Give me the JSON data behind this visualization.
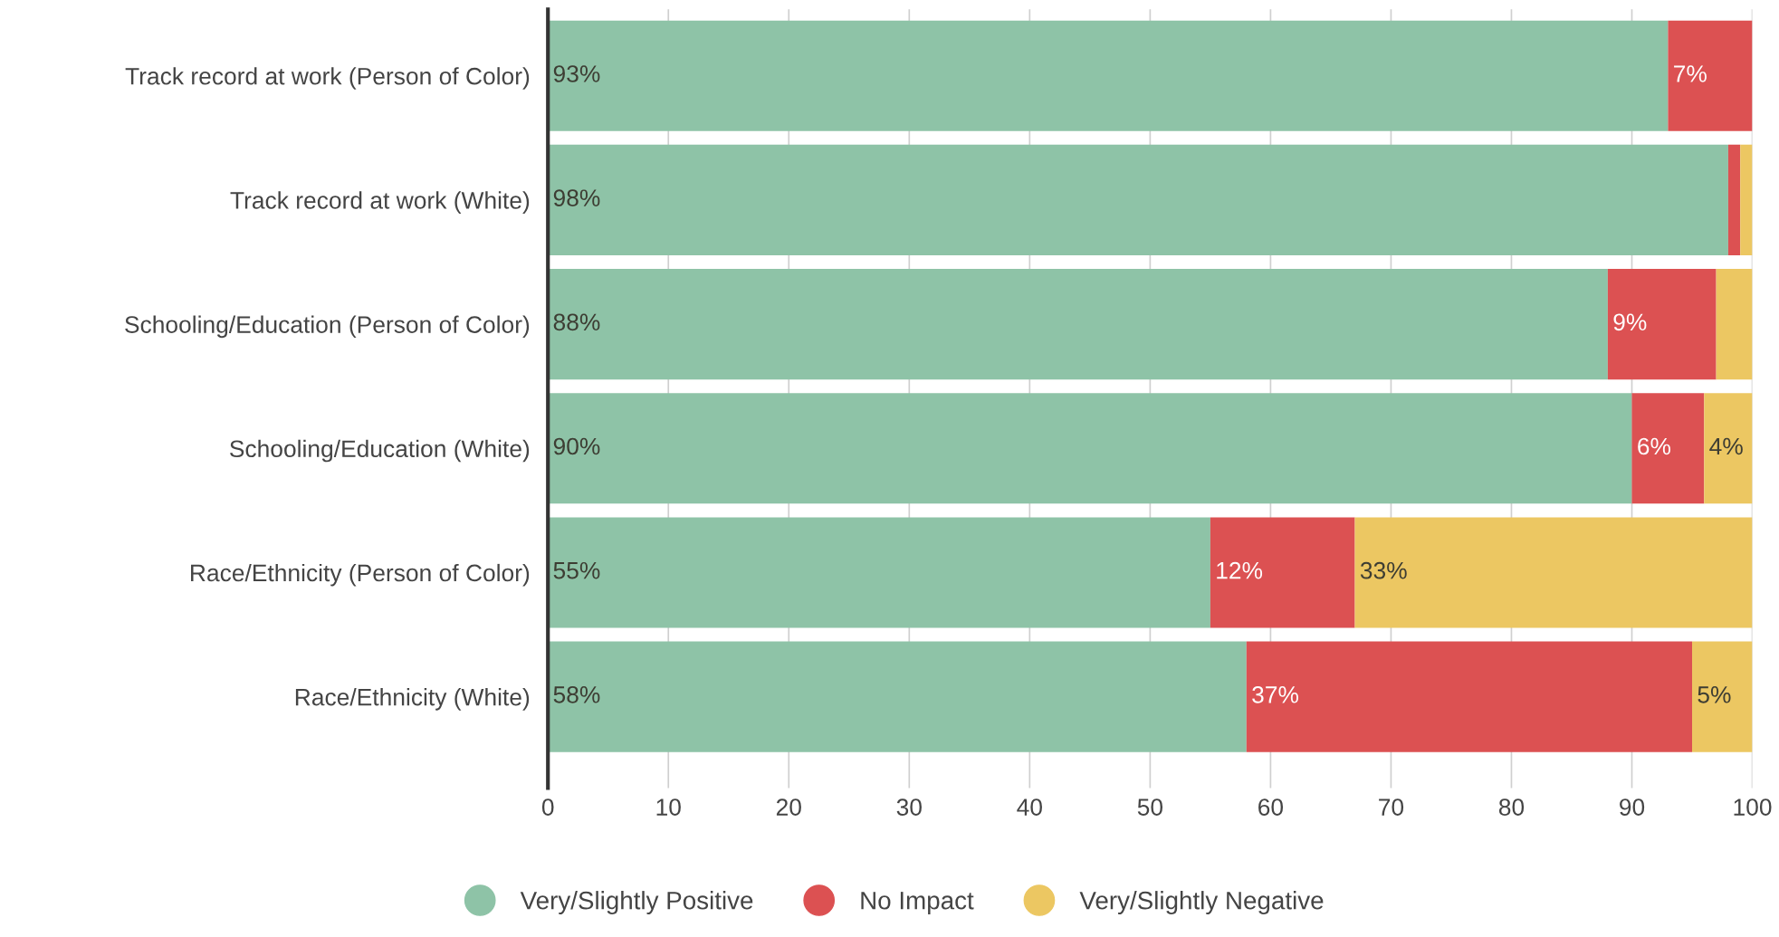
{
  "chart_data": {
    "type": "bar",
    "orientation": "horizontal",
    "stacked": true,
    "categories": [
      "Track record at work (Person of Color)",
      "Track record at work (White)",
      "Schooling/Education (Person of Color)",
      "Schooling/Education (White)",
      "Race/Ethnicity (Person of Color)",
      "Race/Ethnicity (White)"
    ],
    "series": [
      {
        "name": "Very/Slightly Positive",
        "color": "#8ec3a7",
        "values": [
          93,
          98,
          88,
          90,
          55,
          58
        ],
        "value_labels": [
          "93%",
          "98%",
          "88%",
          "90%",
          "55%",
          "58%"
        ]
      },
      {
        "name": "No Impact",
        "color": "#dc5152",
        "values": [
          7,
          1,
          9,
          6,
          12,
          37
        ],
        "value_labels": [
          "7%",
          null,
          "9%",
          "6%",
          "12%",
          "37%"
        ]
      },
      {
        "name": "Very/Slightly Negative",
        "color": "#ecc762",
        "values": [
          null,
          1,
          3,
          4,
          33,
          5
        ],
        "value_labels": [
          null,
          null,
          null,
          "4%",
          "33%",
          "5%"
        ]
      }
    ],
    "xlim": [
      0,
      100
    ],
    "xticks": [
      0,
      10,
      20,
      30,
      40,
      50,
      60,
      70,
      80,
      90,
      100
    ],
    "grid": "x",
    "legend": "bottom"
  }
}
